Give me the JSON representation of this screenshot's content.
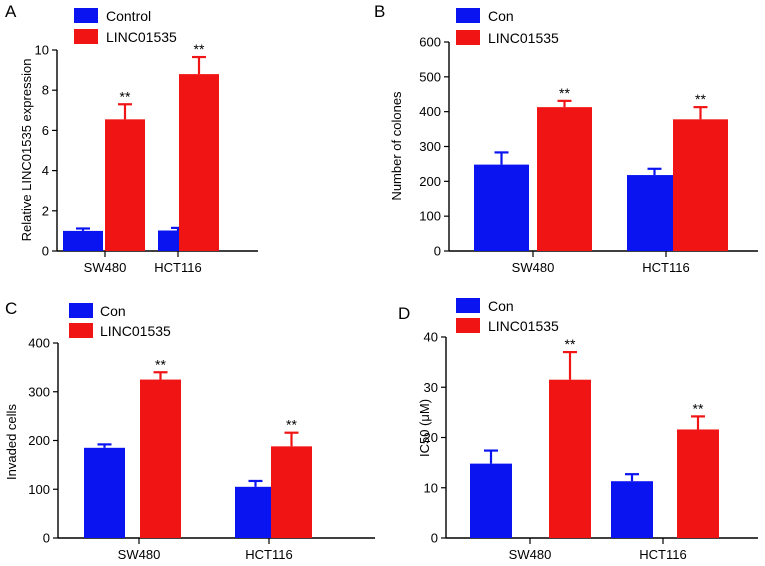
{
  "figure": {
    "colors": {
      "control": "#0a14f0",
      "treatment": "#f01414",
      "axis": "#000000"
    }
  },
  "chart_data": [
    {
      "type": "bar",
      "panel": "A",
      "ylabel": "Relative LINC01535 expression",
      "ylim": [
        0,
        10
      ],
      "yticks": [
        0,
        2,
        4,
        6,
        8,
        10
      ],
      "categories": [
        "SW480",
        "HCT116"
      ],
      "legend": [
        "Control",
        "LINC01535"
      ],
      "legend_position": "top-left",
      "series": [
        {
          "name": "Control",
          "color": "#0a14f0",
          "values": [
            1.0,
            1.02
          ],
          "errors": [
            0.12,
            0.13
          ],
          "labels": [
            "",
            ""
          ]
        },
        {
          "name": "LINC01535",
          "color": "#f01414",
          "values": [
            6.55,
            8.8
          ],
          "errors": [
            0.75,
            0.85
          ],
          "labels": [
            "**",
            "**"
          ]
        }
      ]
    },
    {
      "type": "bar",
      "panel": "B",
      "ylabel": "Number of colones",
      "ylim": [
        0,
        600
      ],
      "yticks": [
        0,
        100,
        200,
        300,
        400,
        500,
        600
      ],
      "categories": [
        "SW480",
        "HCT116"
      ],
      "legend": [
        "Con",
        "LINC01535"
      ],
      "legend_position": "top-left",
      "series": [
        {
          "name": "Con",
          "color": "#0a14f0",
          "values": [
            248,
            218
          ],
          "errors": [
            35,
            18
          ],
          "labels": [
            "",
            ""
          ]
        },
        {
          "name": "LINC01535",
          "color": "#f01414",
          "values": [
            413,
            378
          ],
          "errors": [
            18,
            35
          ],
          "labels": [
            "**",
            "**"
          ]
        }
      ]
    },
    {
      "type": "bar",
      "panel": "C",
      "ylabel": "Invaded cells",
      "ylim": [
        0,
        400
      ],
      "yticks": [
        0,
        100,
        200,
        300,
        400
      ],
      "categories": [
        "SW480",
        "HCT116"
      ],
      "legend": [
        "Con",
        "LINC01535"
      ],
      "legend_position": "top-left",
      "series": [
        {
          "name": "Con",
          "color": "#0a14f0",
          "values": [
            185,
            105
          ],
          "errors": [
            7,
            12
          ],
          "labels": [
            "",
            ""
          ]
        },
        {
          "name": "LINC01535",
          "color": "#f01414",
          "values": [
            325,
            188
          ],
          "errors": [
            15,
            28
          ],
          "labels": [
            "**",
            "**"
          ]
        }
      ]
    },
    {
      "type": "bar",
      "panel": "D",
      "ylabel": "IC50 (μM)",
      "ylim": [
        0,
        40
      ],
      "yticks": [
        0,
        10,
        20,
        30,
        40
      ],
      "categories": [
        "SW480",
        "HCT116"
      ],
      "legend": [
        "Con",
        "LINC01535"
      ],
      "legend_position": "top-left",
      "series": [
        {
          "name": "Con",
          "color": "#0a14f0",
          "values": [
            14.8,
            11.3
          ],
          "errors": [
            2.6,
            1.4
          ],
          "labels": [
            "",
            ""
          ]
        },
        {
          "name": "LINC01535",
          "color": "#f01414",
          "values": [
            31.5,
            21.6
          ],
          "errors": [
            5.5,
            2.6
          ],
          "labels": [
            "**",
            "**"
          ]
        }
      ]
    }
  ]
}
